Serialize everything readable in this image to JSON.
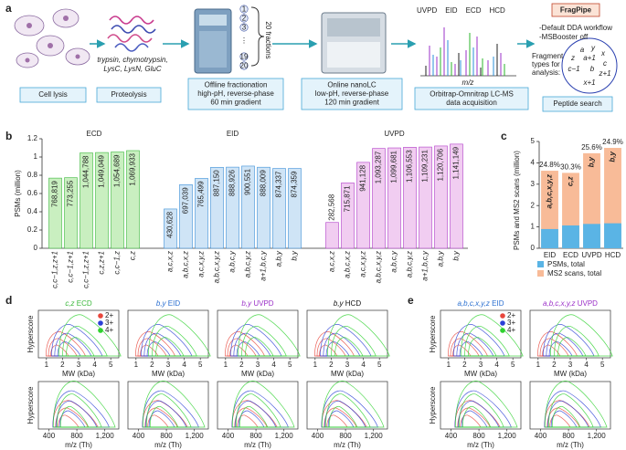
{
  "panel_labels": [
    "a",
    "b",
    "c",
    "d",
    "e"
  ],
  "workflow": {
    "steps": [
      {
        "lines": [
          "Cell lysis"
        ]
      },
      {
        "lines": [
          "Proteolysis"
        ]
      },
      {
        "lines": [
          "Offline fractionation",
          "high-pH, reverse-phase",
          "60 min gradient"
        ]
      },
      {
        "lines": [
          "Online nanoLC",
          "low-pH, reverse-phase",
          "120 min gradient"
        ]
      },
      {
        "lines": [
          "Orbitrap-Omnitrap LC-MS",
          "data acquisition"
        ]
      },
      {
        "lines": [
          "Peptide search"
        ]
      }
    ],
    "enzymes": [
      "trypsin, chymotrypsin,",
      "LysC, LysN, GluC"
    ],
    "fractions": "20 fractions",
    "fraction_markers": [
      1,
      2,
      3,
      19,
      20
    ],
    "spectrum_labels": [
      {
        "text": "UVPD",
        "color": "#9b30c8"
      },
      {
        "text": "EID",
        "color": "#2a8fd8"
      },
      {
        "text": "ECD",
        "color": "#2bb52b"
      },
      {
        "text": "HCD",
        "color": "#111111"
      }
    ],
    "spectrum_axis": "m/z",
    "logo": "FragPipe",
    "search_notes": [
      "-Default DDA workflow",
      "-MSBooster off"
    ],
    "fragment_caption": [
      "Fragment",
      "types for",
      "analysis:"
    ],
    "fragment_types": [
      "a",
      "y",
      "x",
      "z",
      "a+1",
      "c",
      "c−1",
      "b",
      "z+1",
      "x+1"
    ]
  },
  "chart_data": [
    {
      "type": "grouped-bar",
      "y_label": "PSMs (million)",
      "ylim": [
        0,
        1.2
      ],
      "yticks": [
        0,
        0.2,
        0.4,
        0.6,
        0.8,
        1,
        1.2
      ],
      "groups": [
        {
          "name": "ECD",
          "color": "#c9efc0",
          "label_color": "#3cb83c",
          "categories": [
            "c,c−1,z,z+1",
            "c,c−1,z+1",
            "c,c−1,z,z+1",
            "c,z,z+1",
            "c,c−1,z",
            "c,z"
          ],
          "values": [
            0.768819,
            0.773255,
            1.044788,
            1.049049,
            1.054689,
            1.069933
          ],
          "value_labels": [
            "768,819",
            "773,255",
            "1,044,788",
            "1,049,049",
            "1,054,689",
            "1,069,933"
          ]
        },
        {
          "name": "EID",
          "color": "#cfe4f6",
          "label_color": "#3b8fd8",
          "categories": [
            "a,c,x,z",
            "a,b,c,x,z",
            "a,c,x,y,z",
            "a,b,c,x,y,z",
            "a,b,c,y",
            "a,b,c,y,z",
            "a+1,b,c,y",
            "a,b,y",
            "b,y"
          ],
          "values": [
            0.430628,
            0.697039,
            0.765499,
            0.88715,
            0.888926,
            0.900551,
            0.888009,
            0.874337,
            0.874359
          ],
          "value_labels": [
            "430,628",
            "697,039",
            "765,499",
            "887,150",
            "888,926",
            "900,551",
            "888,009",
            "874,337",
            "874,359"
          ]
        },
        {
          "name": "UVPD",
          "color": "#f1cdf1",
          "label_color": "#b03cc8",
          "categories": [
            "a,c,x,z",
            "a,b,c,x,z",
            "a,c,x,y,z",
            "a,b,c,x,y,z",
            "a,b,c,y",
            "a,b,c,y,z",
            "a+1,b,c,y",
            "a,b,y",
            "b,y"
          ],
          "values": [
            0.282568,
            0.715871,
            0.941128,
            1.093287,
            1.099681,
            1.106553,
            1.109231,
            1.120706,
            1.141149
          ],
          "value_labels": [
            "282,568",
            "715,871",
            "941,128",
            "1,093,287",
            "1,099,681",
            "1,106,553",
            "1,109,231",
            "1,120,706",
            "1,141,149"
          ]
        }
      ]
    },
    {
      "type": "overlay-bar",
      "y_label": "PSMs and MS2 scans (million)",
      "categories": [
        "EID",
        "ECD",
        "UVPD",
        "HCD"
      ],
      "ylim": [
        0,
        5
      ],
      "yticks": [
        0,
        1,
        2,
        3,
        4,
        5
      ],
      "series": [
        {
          "name": "PSMs, total",
          "color": "#5ab4e5",
          "values": [
            0.9,
            1.07,
            1.14,
            1.17
          ]
        },
        {
          "name": "MS2 scans, total",
          "color": "#f8bb98",
          "values": [
            3.63,
            3.53,
            4.45,
            4.7
          ]
        }
      ],
      "ratio_labels": [
        "24.8%",
        "30.3%",
        "25.6%",
        "24.9%"
      ],
      "ion_labels": [
        "a,b,c,x,y,z",
        "c,z",
        "b,y",
        "b,y"
      ]
    },
    {
      "type": "contour",
      "ions": "c,z",
      "method": "ECD",
      "color": "#3cb83c"
    },
    {
      "type": "contour",
      "ions": "b,y",
      "method": "EID",
      "color": "#2a6fd0"
    },
    {
      "type": "contour",
      "ions": "b,y",
      "method": "UVPD",
      "color": "#9b30c8"
    },
    {
      "type": "contour",
      "ions": "b,y",
      "method": "HCD",
      "color": "#111111"
    },
    {
      "type": "contour",
      "ions": "a,b,c,x,y,z",
      "method": "EID",
      "color": "#2a6fd0"
    },
    {
      "type": "contour",
      "ions": "a,b,c,x,y,z",
      "method": "UVPD",
      "color": "#9b30c8"
    }
  ],
  "contour_axes": {
    "y_label": "Hyperscore",
    "top": {
      "x_label": "MW (kDa)",
      "xlim": [
        0.5,
        5.5
      ],
      "xticks": [
        1,
        2,
        3,
        4,
        5
      ]
    },
    "bottom": {
      "x_label": "m/z (Th)",
      "xlim": [
        250,
        1400
      ],
      "xticks": [
        400,
        800,
        {
          "value": 1200,
          "label": "1,200"
        }
      ]
    },
    "series": [
      {
        "name": "2+",
        "color": "#e8463c"
      },
      {
        "name": "3+",
        "color": "#2b3fd6"
      },
      {
        "name": "4+",
        "color": "#2fd12f"
      }
    ]
  }
}
